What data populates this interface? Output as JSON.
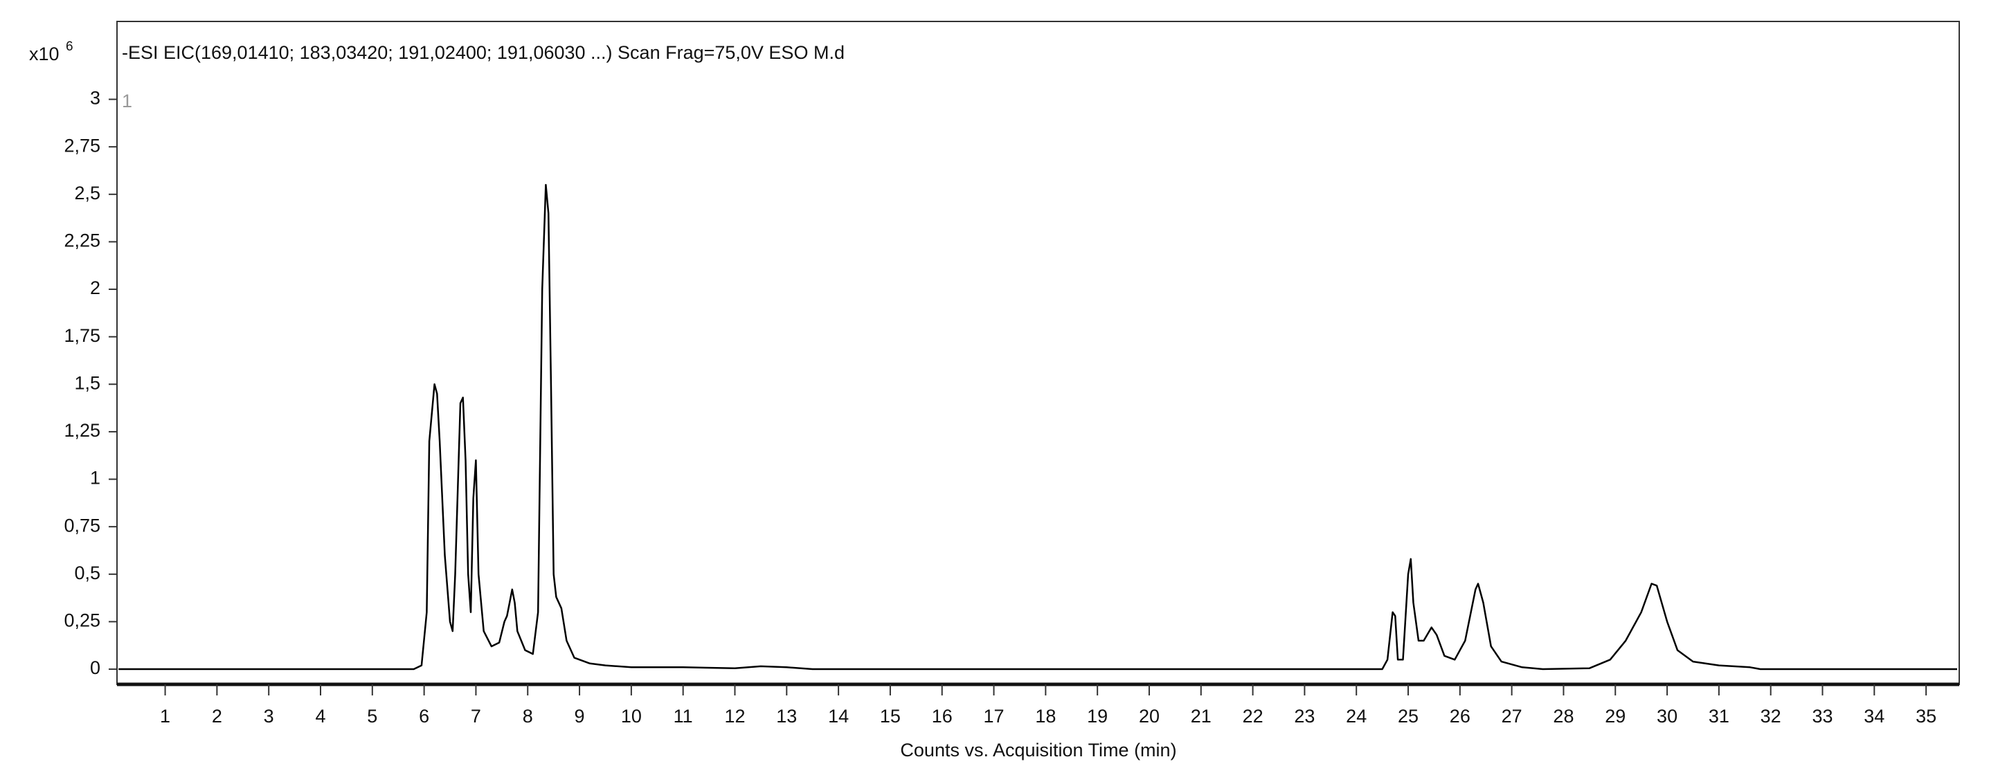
{
  "chart_data": {
    "type": "line",
    "title": "-ESI EIC(169,01410; 183,03420; 191,02400; 191,06030 ...) Scan Frag=75,0V ESO M.d",
    "trace_label": "1",
    "y_multiplier": "x10",
    "y_exponent": "6",
    "x_label": "Counts vs. Acquisition Time (min)",
    "color": "#000000",
    "x": [
      0.1,
      5.8,
      5.95,
      6.05,
      6.1,
      6.2,
      6.25,
      6.3,
      6.4,
      6.5,
      6.55,
      6.6,
      6.7,
      6.75,
      6.8,
      6.85,
      6.9,
      6.95,
      7.0,
      7.05,
      7.15,
      7.3,
      7.45,
      7.55,
      7.6,
      7.65,
      7.7,
      7.75,
      7.8,
      7.95,
      8.1,
      8.2,
      8.28,
      8.35,
      8.4,
      8.45,
      8.5,
      8.55,
      8.65,
      8.75,
      8.9,
      9.2,
      9.5,
      10,
      11,
      12,
      12.5,
      13,
      13.5,
      24.5,
      24.6,
      24.7,
      24.75,
      24.8,
      24.9,
      25.0,
      25.05,
      25.1,
      25.2,
      25.3,
      25.45,
      25.55,
      25.7,
      25.9,
      26.1,
      26.3,
      26.35,
      26.45,
      26.6,
      26.8,
      27.2,
      27.6,
      28.5,
      28.9,
      29.2,
      29.5,
      29.7,
      29.8,
      30.0,
      30.2,
      30.5,
      31,
      31.6,
      31.8,
      35.6
    ],
    "values": [
      0,
      0,
      0.02,
      0.3,
      1.2,
      1.5,
      1.45,
      1.2,
      0.6,
      0.25,
      0.2,
      0.5,
      1.4,
      1.43,
      1.1,
      0.5,
      0.3,
      0.9,
      1.1,
      0.5,
      0.2,
      0.12,
      0.14,
      0.25,
      0.28,
      0.35,
      0.42,
      0.35,
      0.2,
      0.1,
      0.08,
      0.3,
      2.0,
      2.55,
      2.4,
      1.5,
      0.5,
      0.38,
      0.32,
      0.15,
      0.06,
      0.03,
      0.02,
      0.01,
      0.01,
      0.005,
      0.015,
      0.01,
      0,
      0,
      0.05,
      0.3,
      0.28,
      0.05,
      0.05,
      0.5,
      0.58,
      0.35,
      0.15,
      0.15,
      0.22,
      0.18,
      0.07,
      0.05,
      0.15,
      0.42,
      0.45,
      0.35,
      0.12,
      0.04,
      0.01,
      0,
      0.005,
      0.05,
      0.15,
      0.3,
      0.45,
      0.44,
      0.25,
      0.1,
      0.04,
      0.02,
      0.01,
      0,
      0
    ],
    "xlim": [
      0.07,
      35.64
    ],
    "xticks": [
      1,
      2,
      3,
      4,
      5,
      6,
      7,
      8,
      9,
      10,
      11,
      12,
      13,
      14,
      15,
      16,
      17,
      18,
      19,
      20,
      21,
      22,
      23,
      24,
      25,
      26,
      27,
      28,
      29,
      30,
      31,
      32,
      33,
      34,
      35
    ],
    "ylim": [
      -0.08,
      3.41
    ],
    "yticks": [
      0,
      {
        "value": 0.25,
        "label": "0,25"
      },
      {
        "value": 0.5,
        "label": "0,5"
      },
      {
        "value": 0.75,
        "label": "0,75"
      },
      1,
      {
        "value": 1.25,
        "label": "1,25"
      },
      {
        "value": 1.5,
        "label": "1,5"
      },
      {
        "value": 1.75,
        "label": "1,75"
      },
      2,
      {
        "value": 2.25,
        "label": "2,25"
      },
      {
        "value": 2.5,
        "label": "2,5"
      },
      {
        "value": 2.75,
        "label": "2,75"
      },
      3
    ],
    "grid": false
  }
}
